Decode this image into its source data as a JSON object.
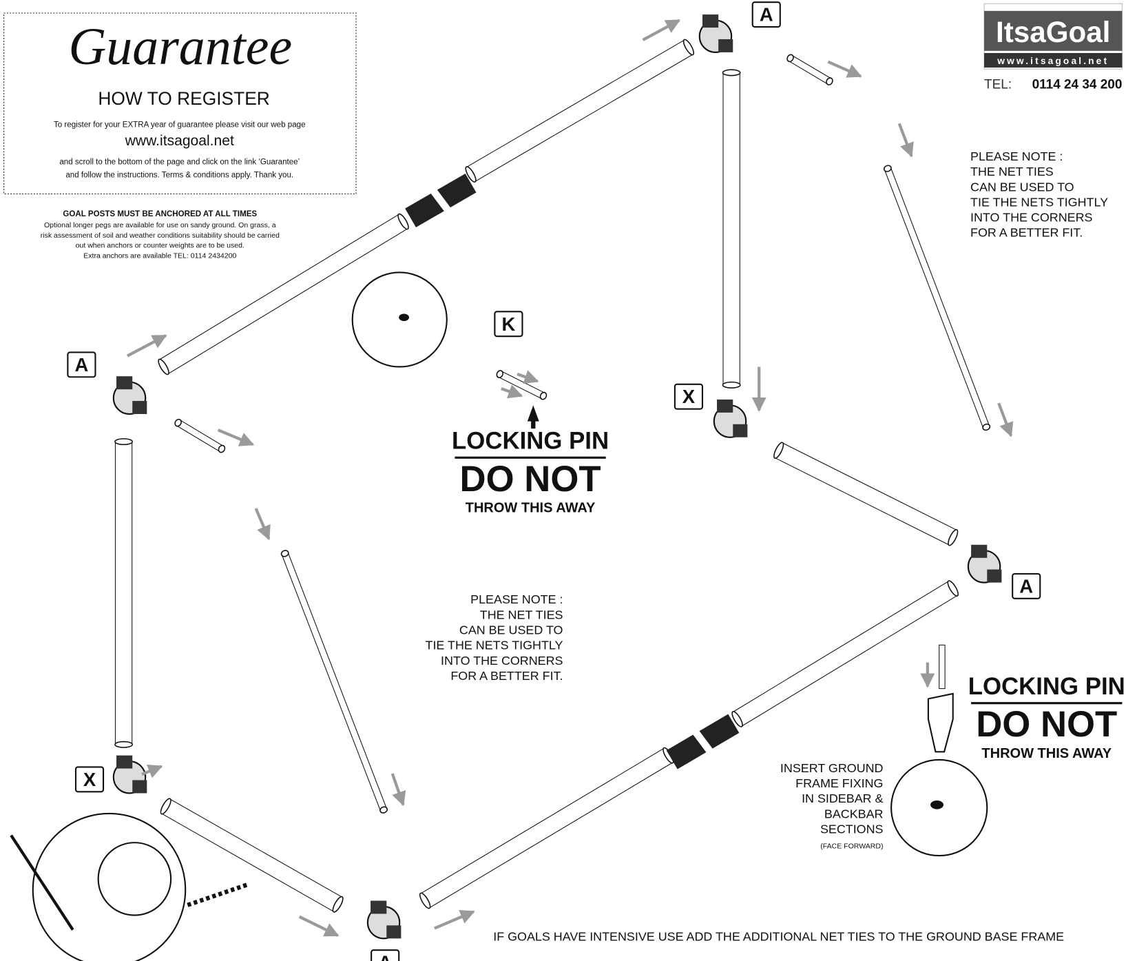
{
  "guarantee": {
    "title": "Guarantee",
    "heading": "HOW TO REGISTER",
    "lines": [
      "To register for your EXTRA year of guarantee please visit our web page",
      "www.itsagoal.net",
      "and scroll to the bottom of the page and click on the link ‘Guarantee’",
      "and follow the instructions. Terms & conditions apply. Thank you."
    ]
  },
  "anchor_note": {
    "title": "GOAL POSTS MUST BE ANCHORED AT ALL TIMES",
    "lines": [
      "Optional longer pegs are available for use on sandy ground. On grass, a",
      "risk assessment of soil and weather conditions suitability should be carried",
      "out when anchors or counter weights are to be used.",
      "Extra anchors are available TEL: 0114 2434200"
    ]
  },
  "logo": {
    "brand": "ItsaGoal",
    "url": "www.itsagoal.net",
    "tel_label": "TEL:",
    "tel_number": "0114 24 34 200"
  },
  "part_labels": [
    "A",
    "A",
    "A",
    "A",
    "K",
    "X",
    "X"
  ],
  "locking_pins": [
    {
      "title": "LOCKING PIN",
      "warning": "DO NOT",
      "sub": "THROW THIS AWAY"
    },
    {
      "title": "LOCKING PIN",
      "warning": "DO NOT",
      "sub": "THROW THIS AWAY"
    }
  ],
  "net_notes": [
    {
      "lines": [
        "PLEASE NOTE :",
        "THE NET TIES",
        "CAN BE USED TO",
        "TIE THE NETS TIGHTLY",
        "INTO THE CORNERS",
        "FOR A BETTER FIT."
      ]
    },
    {
      "lines": [
        "PLEASE NOTE :",
        "THE NET TIES",
        "CAN BE USED TO",
        "TIE THE NETS TIGHTLY",
        "INTO THE CORNERS",
        "FOR A BETTER FIT."
      ]
    }
  ],
  "ground_fixing": {
    "lines": [
      "INSERT GROUND",
      "FRAME FIXING",
      "IN SIDEBAR &",
      "BACKBAR",
      "SECTIONS"
    ],
    "note": "(FACE FORWARD)"
  },
  "footer": "IF GOALS HAVE INTENSIVE USE ADD  THE ADDITIONAL NET TIES TO THE GROUND BASE FRAME"
}
